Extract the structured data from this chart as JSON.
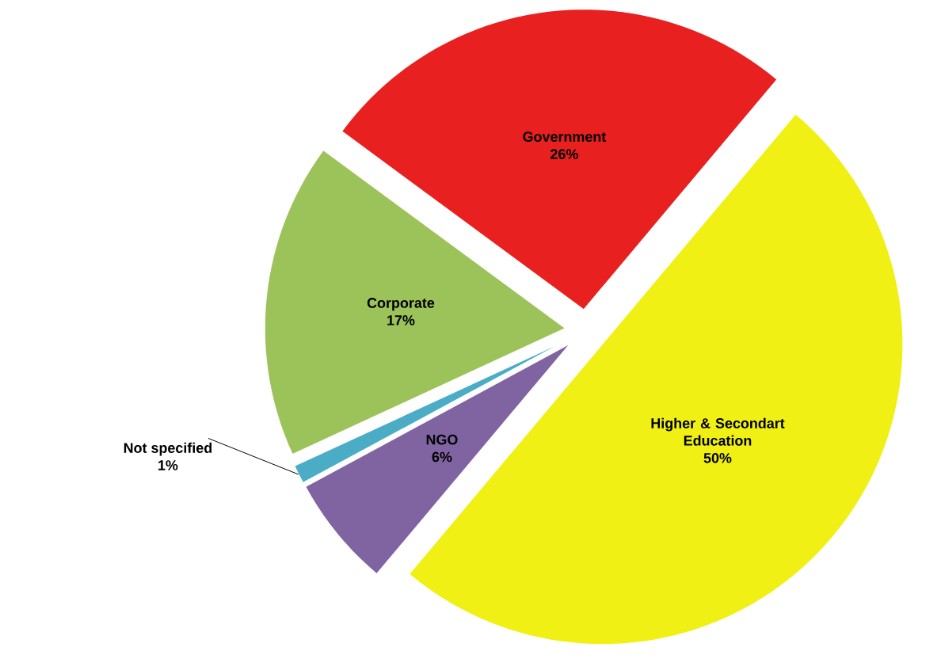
{
  "chart_data": {
    "type": "pie",
    "categories": [
      "Government",
      "Corporate",
      "Not specified",
      "NGO",
      "Higher & Secondart Education"
    ],
    "values": [
      26,
      17,
      1,
      6,
      50
    ],
    "value_labels": [
      "26%",
      "17%",
      "1%",
      "6%",
      "50%"
    ],
    "colors": [
      "#e8201f",
      "#9bc35a",
      "#4bacc6",
      "#8064a2",
      "#f0f014"
    ]
  }
}
